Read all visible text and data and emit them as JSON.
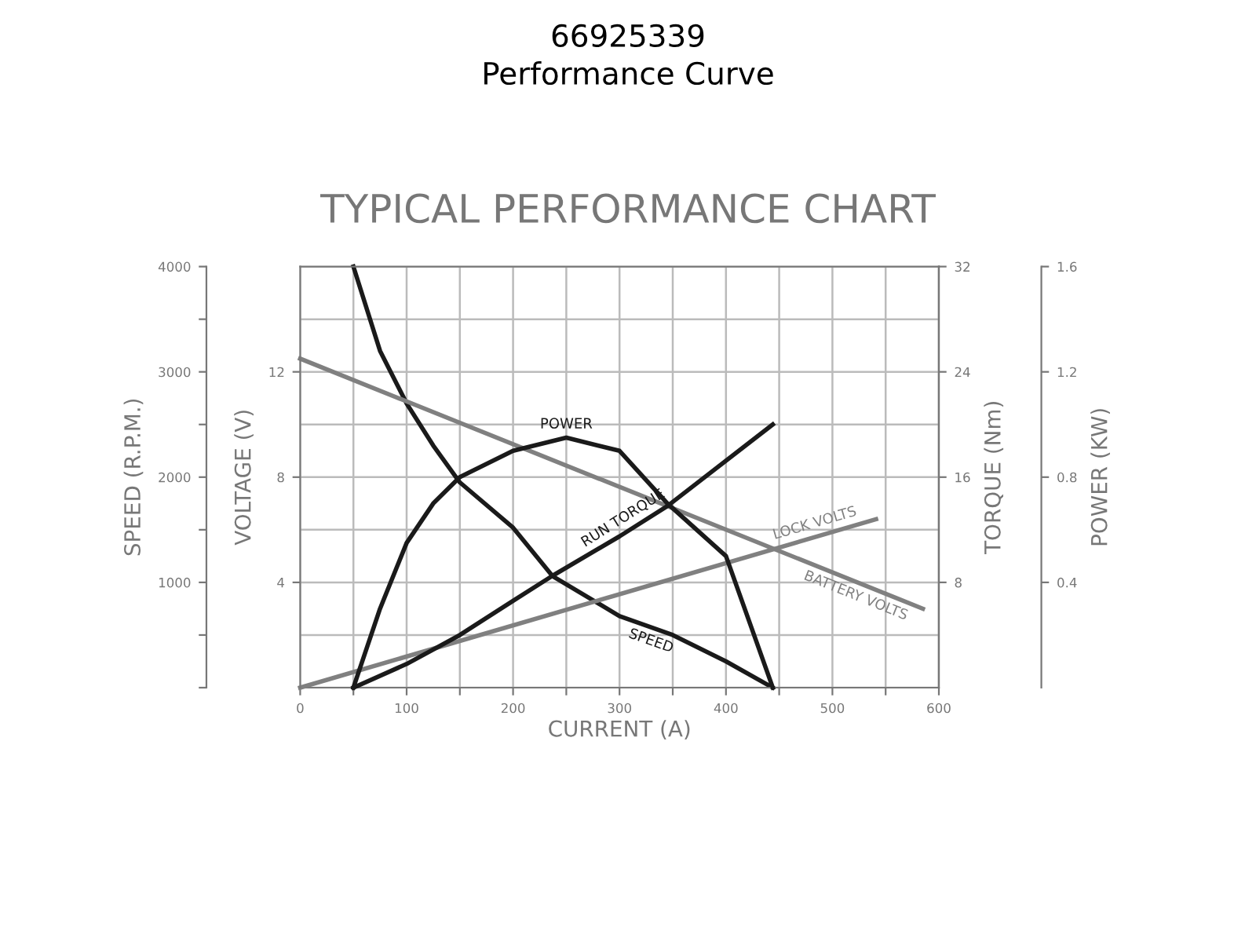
{
  "chart_data": [
    {
      "type": "line",
      "title": "66925339",
      "subtitle": "Performance Curve",
      "annotations": [
        "TYPICAL PERFORMANCE CHART"
      ],
      "xlabel": "CURRENT (A)",
      "ylabel": "SPEED (R.P.M.)",
      "y2label": "VOLTAGE (V)",
      "y3label": "TORQUE (Nm)",
      "xlim": [
        0,
        600
      ],
      "xticks": [
        0,
        {
          "value": 50,
          "label": null
        },
        100,
        {
          "value": 150,
          "label": null
        },
        200,
        {
          "value": 250,
          "label": null
        },
        300,
        {
          "value": 350,
          "label": null
        },
        400,
        {
          "value": 450,
          "label": null
        },
        500,
        {
          "value": 550,
          "label": null
        },
        600
      ],
      "ylim": [
        0,
        4000
      ],
      "yticks": [
        {
          "value": 0,
          "label": null
        },
        {
          "value": 500,
          "label": null
        },
        1000,
        {
          "value": 1500,
          "label": null
        },
        2000,
        {
          "value": 2500,
          "label": null
        },
        3000,
        {
          "value": 3500,
          "label": null
        },
        4000
      ],
      "y2lim": [
        0,
        16
      ],
      "y2ticks": [
        4,
        8,
        12
      ],
      "y3lim": [
        0,
        32
      ],
      "y3ticks": [
        8,
        16,
        24,
        32
      ],
      "grid": true,
      "line_style": "solid",
      "series": [
        {
          "name": "SPEED",
          "color": "#1a1a1a",
          "axis": "y",
          "x": [
            50,
            75,
            100,
            125,
            150,
            200,
            237,
            300,
            350,
            400,
            444
          ],
          "values": [
            4000,
            3200,
            2700,
            2300,
            1950,
            1520,
            1060,
            680,
            500,
            250,
            0
          ]
        },
        {
          "name": "RUN TORQUE",
          "color": "#1a1a1a",
          "axis": "y3",
          "x": [
            50,
            100,
            150,
            200,
            237,
            300,
            345,
            444
          ],
          "values": [
            0,
            1.8,
            4.0,
            6.6,
            8.5,
            11.5,
            13.8,
            20
          ]
        },
        {
          "name": "BATTERY VOLTS",
          "color": "#808080",
          "axis": "y2",
          "x": [
            0,
            585
          ],
          "values": [
            12.5,
            3.0
          ]
        },
        {
          "name": "LOCK VOLTS",
          "color": "#808080",
          "axis": "y2",
          "x": [
            0,
            541
          ],
          "values": [
            0,
            6.4
          ]
        }
      ]
    },
    {
      "type": "line",
      "ylabel": "POWER (KW)",
      "xlim": [
        0,
        600
      ],
      "ylim": [
        0,
        1.6
      ],
      "yticks": [
        0.4,
        0.8,
        1.2,
        1.6
      ],
      "tick_labels": "y",
      "line_style": "solid",
      "series": [
        {
          "name": "POWER",
          "color": "#1a1a1a",
          "x": [
            50,
            75,
            100,
            125,
            150,
            200,
            250,
            300,
            345,
            400,
            444
          ],
          "values": [
            0,
            0.3,
            0.55,
            0.7,
            0.8,
            0.9,
            0.95,
            0.9,
            0.7,
            0.5,
            0
          ]
        }
      ]
    }
  ]
}
